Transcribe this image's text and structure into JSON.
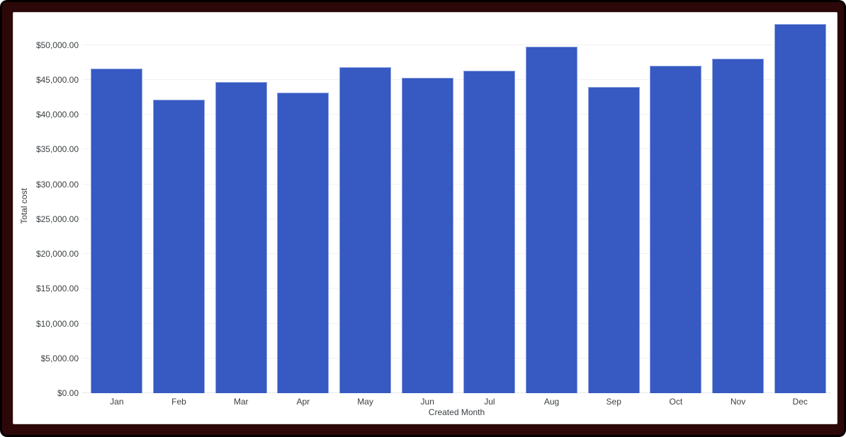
{
  "frame": {
    "outer_color": "#060000",
    "inner_color": "#2d0808",
    "panel_background": "#ffffff",
    "panel_border": "#d4d4d4"
  },
  "chart_data": {
    "type": "bar",
    "title": "",
    "xlabel": "Created Month",
    "ylabel": "Total cost",
    "categories": [
      "Jan",
      "Feb",
      "Mar",
      "Apr",
      "May",
      "Jun",
      "Jul",
      "Aug",
      "Sep",
      "Oct",
      "Nov",
      "Dec"
    ],
    "series": [
      {
        "name": "Total cost",
        "values": [
          46600,
          42100,
          44700,
          43100,
          46800,
          45300,
          46300,
          49750,
          44000,
          47000,
          48050,
          52950
        ]
      }
    ],
    "ylim": [
      0,
      53000
    ],
    "yticks": [
      {
        "value": 0,
        "label": "$0.00"
      },
      {
        "value": 5000,
        "label": "$5,000.00"
      },
      {
        "value": 10000,
        "label": "$10,000.00"
      },
      {
        "value": 15000,
        "label": "$15,000.00"
      },
      {
        "value": 20000,
        "label": "$20,000.00"
      },
      {
        "value": 25000,
        "label": "$25,000.00"
      },
      {
        "value": 30000,
        "label": "$30,000.00"
      },
      {
        "value": 35000,
        "label": "$35,000.00"
      },
      {
        "value": 40000,
        "label": "$40,000.00"
      },
      {
        "value": 45000,
        "label": "$45,000.00"
      },
      {
        "value": 50000,
        "label": "$50,000.00"
      }
    ],
    "grid": "horizontal",
    "legend_position": "none",
    "bar_color": "#3659c2",
    "bar_stroke_color": "#8fa4e0",
    "gridline_color": "#f1f1f1",
    "zero_line_color": "#e7e7e7",
    "axis_label_color": "#3c4043"
  }
}
